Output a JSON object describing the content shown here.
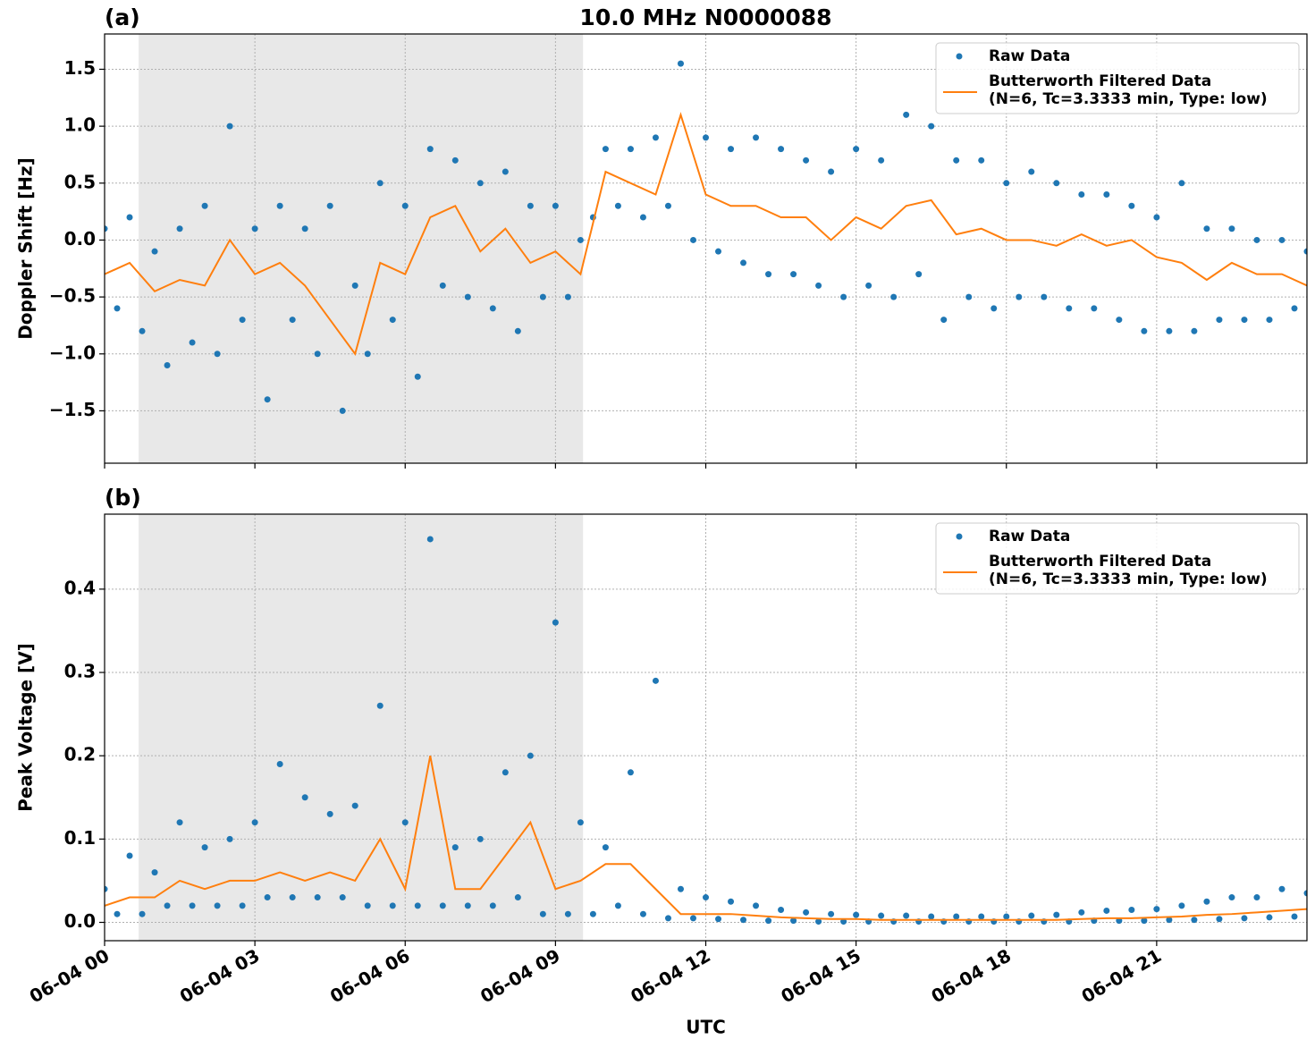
{
  "chart_data": [
    {
      "type": "scatter",
      "panel_label": "(a)",
      "title": "10.0 MHz N0000088",
      "y_label": "Doppler Shift [Hz]",
      "xlim": [
        0,
        24
      ],
      "xticks": [
        0,
        3,
        6,
        9,
        12,
        15,
        18,
        21
      ],
      "show_xtick_labels": false,
      "ylim": [
        -1.96,
        1.81
      ],
      "yticks": [
        {
          "value": -1.5,
          "label": "−1.5"
        },
        {
          "value": -1.0,
          "label": "−1.0"
        },
        {
          "value": -0.5,
          "label": "−0.5"
        },
        {
          "value": 0,
          "label": "0.0"
        },
        0.5,
        {
          "value": 1.0,
          "label": "1.0"
        },
        1.5
      ],
      "grid": true,
      "legend": "upper right",
      "shaded_region": {
        "x": [
          0.68,
          9.55
        ],
        "color": "#e8e8e8"
      },
      "series": [
        {
          "name": "Raw Data",
          "mode": "markers",
          "color": "#1f77b4",
          "x": [
            0,
            0.25,
            0.5,
            0.75,
            1,
            1.25,
            1.5,
            1.75,
            2,
            2.25,
            2.5,
            2.75,
            3,
            3.25,
            3.5,
            3.75,
            4,
            4.25,
            4.5,
            4.75,
            5,
            5.25,
            5.5,
            5.75,
            6,
            6.25,
            6.5,
            6.75,
            7,
            7.25,
            7.5,
            7.75,
            8,
            8.25,
            8.5,
            8.75,
            9,
            9.25,
            9.5,
            9.75,
            10,
            10.25,
            10.5,
            10.75,
            11,
            11.25,
            11.5,
            11.75,
            12,
            12.25,
            12.5,
            12.75,
            13,
            13.25,
            13.5,
            13.75,
            14,
            14.25,
            14.5,
            14.75,
            15,
            15.25,
            15.5,
            15.75,
            16,
            16.25,
            16.5,
            16.75,
            17,
            17.25,
            17.5,
            17.75,
            18,
            18.25,
            18.5,
            18.75,
            19,
            19.25,
            19.5,
            19.75,
            20,
            20.25,
            20.5,
            20.75,
            21,
            21.25,
            21.5,
            21.75,
            22,
            22.25,
            22.5,
            22.75,
            23,
            23.25,
            23.5,
            23.75,
            24
          ],
          "values": [
            0.1,
            -0.6,
            0.2,
            -0.8,
            -0.1,
            -1.1,
            0.1,
            -0.9,
            0.3,
            -1.0,
            1.0,
            -0.7,
            0.1,
            -1.4,
            0.3,
            -0.7,
            0.1,
            -1.0,
            0.3,
            -1.5,
            -0.4,
            -1.0,
            0.5,
            -0.7,
            0.3,
            -1.2,
            0.8,
            -0.4,
            0.7,
            -0.5,
            0.5,
            -0.6,
            0.6,
            -0.8,
            0.3,
            -0.5,
            0.3,
            -0.5,
            0.0,
            0.2,
            0.8,
            0.3,
            0.8,
            0.2,
            0.9,
            0.3,
            1.55,
            0.0,
            0.9,
            -0.1,
            0.8,
            -0.2,
            0.9,
            -0.3,
            0.8,
            -0.3,
            0.7,
            -0.4,
            0.6,
            -0.5,
            0.8,
            -0.4,
            0.7,
            -0.5,
            1.1,
            -0.3,
            1.0,
            -0.7,
            0.7,
            -0.5,
            0.7,
            -0.6,
            0.5,
            -0.5,
            0.6,
            -0.5,
            0.5,
            -0.6,
            0.4,
            -0.6,
            0.4,
            -0.7,
            0.3,
            -0.8,
            0.2,
            -0.8,
            0.5,
            -0.8,
            0.1,
            -0.7,
            0.1,
            -0.7,
            0.0,
            -0.7,
            0.0,
            -0.6,
            -0.1
          ]
        },
        {
          "name": "Butterworth Filtered Data\n(N=6, Tc=3.3333 min, Type: low)",
          "mode": "line",
          "color": "#ff7f0e",
          "x": [
            0,
            0.5,
            1,
            1.5,
            2,
            2.5,
            3,
            3.5,
            4,
            4.5,
            5,
            5.5,
            6,
            6.5,
            7,
            7.5,
            8,
            8.5,
            9,
            9.5,
            10,
            10.5,
            11,
            11.5,
            12,
            12.5,
            13,
            13.5,
            14,
            14.5,
            15,
            15.5,
            16,
            16.5,
            17,
            17.5,
            18,
            18.5,
            19,
            19.5,
            20,
            20.5,
            21,
            21.5,
            22,
            22.5,
            23,
            23.5,
            24
          ],
          "values": [
            -0.3,
            -0.2,
            -0.45,
            -0.35,
            -0.4,
            0.0,
            -0.3,
            -0.2,
            -0.4,
            -0.7,
            -1.0,
            -0.2,
            -0.3,
            0.2,
            0.3,
            -0.1,
            0.1,
            -0.2,
            -0.1,
            -0.3,
            0.6,
            0.5,
            0.4,
            1.1,
            0.4,
            0.3,
            0.3,
            0.2,
            0.2,
            0.0,
            0.2,
            0.1,
            0.3,
            0.35,
            0.05,
            0.1,
            0.0,
            0.0,
            -0.05,
            0.05,
            -0.05,
            0.0,
            -0.15,
            -0.2,
            -0.35,
            -0.2,
            -0.3,
            -0.3,
            -0.4
          ]
        }
      ]
    },
    {
      "type": "scatter",
      "panel_label": "(b)",
      "y_label": "Peak Voltage [V]",
      "x_label": "UTC",
      "xlim": [
        0,
        24
      ],
      "xticks": [
        {
          "value": 0,
          "label": "06-04 00"
        },
        {
          "value": 3,
          "label": "06-04 03"
        },
        {
          "value": 6,
          "label": "06-04 06"
        },
        {
          "value": 9,
          "label": "06-04 09"
        },
        {
          "value": 12,
          "label": "06-04 12"
        },
        {
          "value": 15,
          "label": "06-04 15"
        },
        {
          "value": 18,
          "label": "06-04 18"
        },
        {
          "value": 21,
          "label": "06-04 21"
        }
      ],
      "show_xtick_labels": true,
      "ylim": [
        -0.022,
        0.49
      ],
      "yticks": [
        {
          "value": 0,
          "label": "0.0"
        },
        0.1,
        0.2,
        0.3,
        0.4
      ],
      "grid": true,
      "legend": "upper right",
      "shaded_region": {
        "x": [
          0.68,
          9.55
        ],
        "color": "#e8e8e8"
      },
      "series": [
        {
          "name": "Raw Data",
          "mode": "markers",
          "color": "#1f77b4",
          "x": [
            0,
            0.25,
            0.5,
            0.75,
            1,
            1.25,
            1.5,
            1.75,
            2,
            2.25,
            2.5,
            2.75,
            3,
            3.25,
            3.5,
            3.75,
            4,
            4.25,
            4.5,
            4.75,
            5,
            5.25,
            5.5,
            5.75,
            6,
            6.25,
            6.5,
            6.75,
            7,
            7.25,
            7.5,
            7.75,
            8,
            8.25,
            8.5,
            8.75,
            9,
            9.25,
            9.5,
            9.75,
            10,
            10.25,
            10.5,
            10.75,
            11,
            11.25,
            11.5,
            11.75,
            12,
            12.25,
            12.5,
            12.75,
            13,
            13.25,
            13.5,
            13.75,
            14,
            14.25,
            14.5,
            14.75,
            15,
            15.25,
            15.5,
            15.75,
            16,
            16.25,
            16.5,
            16.75,
            17,
            17.25,
            17.5,
            17.75,
            18,
            18.25,
            18.5,
            18.75,
            19,
            19.25,
            19.5,
            19.75,
            20,
            20.25,
            20.5,
            20.75,
            21,
            21.25,
            21.5,
            21.75,
            22,
            22.25,
            22.5,
            22.75,
            23,
            23.25,
            23.5,
            23.75,
            24
          ],
          "values": [
            0.04,
            0.01,
            0.08,
            0.01,
            0.06,
            0.02,
            0.12,
            0.02,
            0.09,
            0.02,
            0.1,
            0.02,
            0.12,
            0.03,
            0.19,
            0.03,
            0.15,
            0.03,
            0.13,
            0.03,
            0.14,
            0.02,
            0.26,
            0.02,
            0.12,
            0.02,
            0.46,
            0.02,
            0.09,
            0.02,
            0.1,
            0.02,
            0.18,
            0.03,
            0.2,
            0.01,
            0.36,
            0.01,
            0.12,
            0.01,
            0.09,
            0.02,
            0.18,
            0.01,
            0.29,
            0.005,
            0.04,
            0.005,
            0.03,
            0.004,
            0.025,
            0.003,
            0.02,
            0.002,
            0.015,
            0.002,
            0.012,
            0.001,
            0.01,
            0.001,
            0.009,
            0.001,
            0.008,
            0.001,
            0.008,
            0.001,
            0.007,
            0.001,
            0.007,
            0.001,
            0.007,
            0.001,
            0.007,
            0.001,
            0.008,
            0.001,
            0.009,
            0.001,
            0.012,
            0.002,
            0.014,
            0.002,
            0.015,
            0.002,
            0.016,
            0.003,
            0.02,
            0.003,
            0.025,
            0.004,
            0.03,
            0.005,
            0.03,
            0.006,
            0.04,
            0.007,
            0.035
          ]
        },
        {
          "name": "Butterworth Filtered Data\n(N=6, Tc=3.3333 min, Type: low)",
          "mode": "line",
          "color": "#ff7f0e",
          "x": [
            0,
            0.5,
            1,
            1.5,
            2,
            2.5,
            3,
            3.5,
            4,
            4.5,
            5,
            5.5,
            6,
            6.5,
            7,
            7.5,
            8,
            8.5,
            9,
            9.5,
            10,
            10.5,
            11,
            11.5,
            12,
            12.5,
            13,
            13.5,
            14,
            14.5,
            15,
            15.5,
            16,
            16.5,
            17,
            17.5,
            18,
            18.5,
            19,
            19.5,
            20,
            20.5,
            21,
            21.5,
            22,
            22.5,
            23,
            23.5,
            24
          ],
          "values": [
            0.02,
            0.03,
            0.03,
            0.05,
            0.04,
            0.05,
            0.05,
            0.06,
            0.05,
            0.06,
            0.05,
            0.1,
            0.04,
            0.2,
            0.04,
            0.04,
            0.08,
            0.12,
            0.04,
            0.05,
            0.07,
            0.07,
            0.04,
            0.01,
            0.01,
            0.01,
            0.008,
            0.006,
            0.005,
            0.004,
            0.004,
            0.003,
            0.003,
            0.003,
            0.003,
            0.003,
            0.003,
            0.003,
            0.003,
            0.004,
            0.005,
            0.005,
            0.006,
            0.007,
            0.009,
            0.01,
            0.012,
            0.014,
            0.016
          ]
        }
      ]
    }
  ]
}
